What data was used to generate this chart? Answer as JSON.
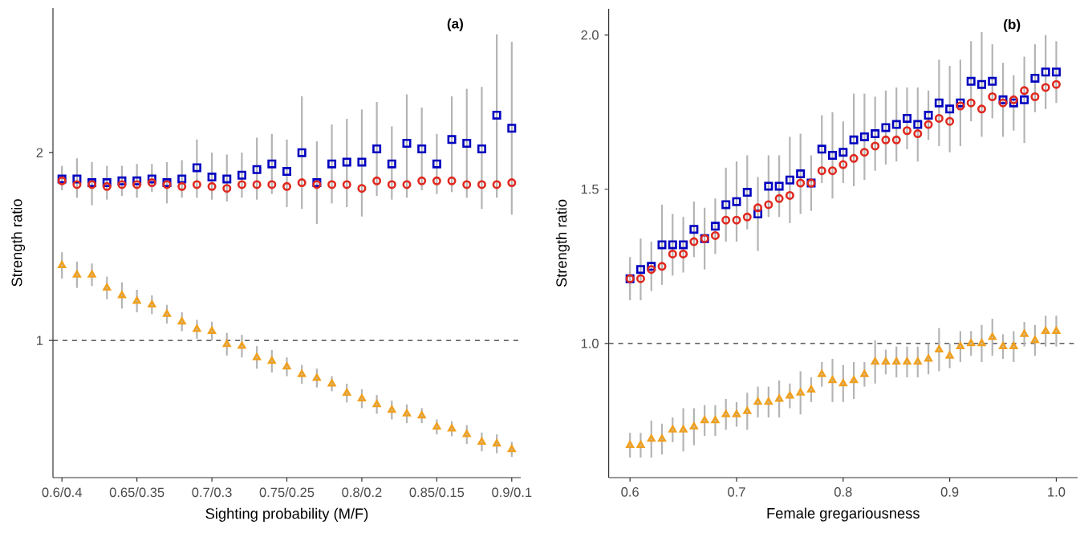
{
  "chart_data": [
    {
      "type": "scatter",
      "title": "(a)",
      "xlabel": "Sighting probability (M/F)",
      "ylabel": "Strength ratio",
      "categories": [
        "0.6/0.4",
        null,
        null,
        null,
        null,
        "0.65/0.35",
        null,
        null,
        null,
        null,
        "0.7/0.3",
        null,
        null,
        null,
        null,
        "0.75/0.25",
        null,
        null,
        null,
        null,
        "0.8/0.2",
        null,
        null,
        null,
        null,
        "0.85/0.15",
        null,
        null,
        null,
        null,
        "0.9/0.1"
      ],
      "ylim": [
        0.27,
        2.77
      ],
      "yticks": [
        1,
        2
      ],
      "ref_lines": [
        {
          "axis": "y",
          "value": 1,
          "color": "#333333",
          "line_style": "dashed"
        }
      ],
      "series": [
        {
          "color": "#0000c0",
          "marker": "square",
          "values": [
            1.86,
            1.86,
            1.84,
            1.84,
            1.85,
            1.85,
            1.86,
            1.84,
            1.86,
            1.92,
            1.87,
            1.86,
            1.88,
            1.91,
            1.94,
            1.9,
            2.0,
            1.84,
            1.94,
            1.95,
            1.95,
            2.02,
            1.94,
            2.05,
            2.02,
            1.94,
            2.07,
            2.05,
            2.02,
            2.2,
            2.13
          ],
          "errors": [
            [
              1.8,
              1.93
            ],
            [
              1.76,
              1.97
            ],
            [
              1.72,
              1.95
            ],
            [
              1.75,
              1.93
            ],
            [
              1.77,
              1.93
            ],
            [
              1.76,
              1.94
            ],
            [
              1.79,
              1.94
            ],
            [
              1.73,
              1.95
            ],
            [
              1.76,
              1.96
            ],
            [
              1.76,
              2.07
            ],
            [
              1.75,
              2.0
            ],
            [
              1.74,
              1.99
            ],
            [
              1.76,
              2.0
            ],
            [
              1.75,
              2.08
            ],
            [
              1.78,
              2.1
            ],
            [
              1.71,
              2.07
            ],
            [
              1.7,
              2.3
            ],
            [
              1.62,
              2.06
            ],
            [
              1.73,
              2.15
            ],
            [
              1.71,
              2.18
            ],
            [
              1.66,
              2.23
            ],
            [
              1.77,
              2.27
            ],
            [
              1.75,
              2.14
            ],
            [
              1.76,
              2.31
            ],
            [
              1.8,
              2.24
            ],
            [
              1.78,
              2.1
            ],
            [
              1.79,
              2.3
            ],
            [
              1.76,
              2.34
            ],
            [
              1.7,
              2.35
            ],
            [
              1.76,
              2.63
            ],
            [
              1.67,
              2.59
            ]
          ]
        },
        {
          "color": "#e0281e",
          "marker": "circle",
          "values": [
            1.85,
            1.83,
            1.83,
            1.82,
            1.83,
            1.83,
            1.84,
            1.83,
            1.82,
            1.83,
            1.82,
            1.81,
            1.83,
            1.83,
            1.83,
            1.82,
            1.84,
            1.83,
            1.83,
            1.83,
            1.81,
            1.85,
            1.83,
            1.83,
            1.85,
            1.85,
            1.85,
            1.83,
            1.83,
            1.83,
            1.84
          ]
        },
        {
          "color": "#f0a01e",
          "marker": "triangle",
          "values": [
            1.4,
            1.35,
            1.35,
            1.28,
            1.24,
            1.21,
            1.19,
            1.14,
            1.1,
            1.06,
            1.05,
            0.98,
            0.97,
            0.91,
            0.89,
            0.86,
            0.82,
            0.8,
            0.77,
            0.72,
            0.69,
            0.66,
            0.63,
            0.61,
            0.6,
            0.54,
            0.53,
            0.5,
            0.46,
            0.45,
            0.42
          ],
          "errors": [
            0.07,
            0.07,
            0.06,
            0.06,
            0.07,
            0.06,
            0.05,
            0.05,
            0.05,
            0.05,
            0.05,
            0.06,
            0.06,
            0.06,
            0.06,
            0.05,
            0.05,
            0.05,
            0.04,
            0.05,
            0.05,
            0.05,
            0.05,
            0.05,
            0.04,
            0.04,
            0.04,
            0.05,
            0.05,
            0.05,
            0.04
          ]
        }
      ]
    },
    {
      "type": "scatter",
      "title": "(b)",
      "xlabel": "Female gregariousness",
      "ylabel": "Strength ratio",
      "x": [
        0.6,
        0.61,
        0.62,
        0.63,
        0.64,
        0.65,
        0.66,
        0.67,
        0.68,
        0.69,
        0.7,
        0.71,
        0.72,
        0.73,
        0.74,
        0.75,
        0.76,
        0.77,
        0.78,
        0.79,
        0.8,
        0.81,
        0.82,
        0.83,
        0.84,
        0.85,
        0.86,
        0.87,
        0.88,
        0.89,
        0.9,
        0.91,
        0.92,
        0.93,
        0.94,
        0.95,
        0.96,
        0.97,
        0.98,
        0.99,
        1.0
      ],
      "xlim": [
        0.58,
        1.02
      ],
      "ylim": [
        0.565,
        2.085
      ],
      "xticks": [
        0.6,
        0.7,
        0.8,
        0.9,
        {
          "value": 1.0,
          "label": "1.0"
        }
      ],
      "yticks": [
        {
          "value": 1.0,
          "label": "1.0"
        },
        1.5,
        {
          "value": 2.0,
          "label": "2.0"
        }
      ],
      "ref_lines": [
        {
          "axis": "y",
          "value": 1,
          "color": "#333333",
          "line_style": "dashed"
        }
      ],
      "series": [
        {
          "color": "#0000c0",
          "marker": "square",
          "values": [
            1.21,
            1.24,
            1.25,
            1.32,
            1.32,
            1.32,
            1.37,
            1.34,
            1.38,
            1.45,
            1.46,
            1.49,
            1.42,
            1.51,
            1.51,
            1.53,
            1.55,
            1.52,
            1.63,
            1.61,
            1.62,
            1.66,
            1.67,
            1.68,
            1.7,
            1.71,
            1.73,
            1.71,
            1.74,
            1.78,
            1.76,
            1.78,
            1.85,
            1.84,
            1.85,
            1.79,
            1.78,
            1.79,
            1.86,
            1.88,
            1.88
          ],
          "errors": [
            0.07,
            0.1,
            0.08,
            0.13,
            0.1,
            0.09,
            0.09,
            0.1,
            0.09,
            0.12,
            0.13,
            0.12,
            0.12,
            0.1,
            0.1,
            0.14,
            0.13,
            0.09,
            0.11,
            0.14,
            0.1,
            0.15,
            0.14,
            0.12,
            0.12,
            0.12,
            0.1,
            0.12,
            0.08,
            0.14,
            0.14,
            0.14,
            0.13,
            0.17,
            0.12,
            0.12,
            0.09,
            0.14,
            0.11,
            0.12,
            0.1
          ]
        },
        {
          "color": "#e0281e",
          "marker": "circle",
          "values": [
            1.21,
            1.21,
            1.24,
            1.25,
            1.29,
            1.29,
            1.33,
            1.34,
            1.35,
            1.4,
            1.4,
            1.41,
            1.44,
            1.45,
            1.47,
            1.48,
            1.52,
            1.52,
            1.56,
            1.56,
            1.58,
            1.6,
            1.62,
            1.64,
            1.66,
            1.66,
            1.69,
            1.68,
            1.71,
            1.73,
            1.72,
            1.77,
            1.78,
            1.76,
            1.8,
            1.78,
            1.79,
            1.82,
            1.8,
            1.83,
            1.84
          ]
        },
        {
          "color": "#f0a01e",
          "marker": "triangle",
          "values": [
            0.67,
            0.67,
            0.69,
            0.69,
            0.72,
            0.72,
            0.73,
            0.75,
            0.75,
            0.77,
            0.77,
            0.78,
            0.81,
            0.81,
            0.82,
            0.83,
            0.84,
            0.85,
            0.9,
            0.88,
            0.87,
            0.88,
            0.9,
            0.94,
            0.94,
            0.94,
            0.94,
            0.94,
            0.95,
            0.98,
            0.96,
            0.99,
            1.0,
            1.0,
            1.02,
            0.99,
            0.99,
            1.03,
            1.01,
            1.04,
            1.04
          ],
          "errors": [
            0.04,
            0.04,
            0.06,
            0.05,
            0.04,
            0.07,
            0.06,
            0.05,
            0.05,
            0.05,
            0.04,
            0.06,
            0.05,
            0.05,
            0.06,
            0.04,
            0.07,
            0.04,
            0.04,
            0.07,
            0.06,
            0.06,
            0.04,
            0.07,
            0.04,
            0.05,
            0.05,
            0.05,
            0.05,
            0.07,
            0.04,
            0.05,
            0.04,
            0.06,
            0.06,
            0.04,
            0.05,
            0.04,
            0.05,
            0.05,
            0.05
          ]
        }
      ]
    }
  ]
}
